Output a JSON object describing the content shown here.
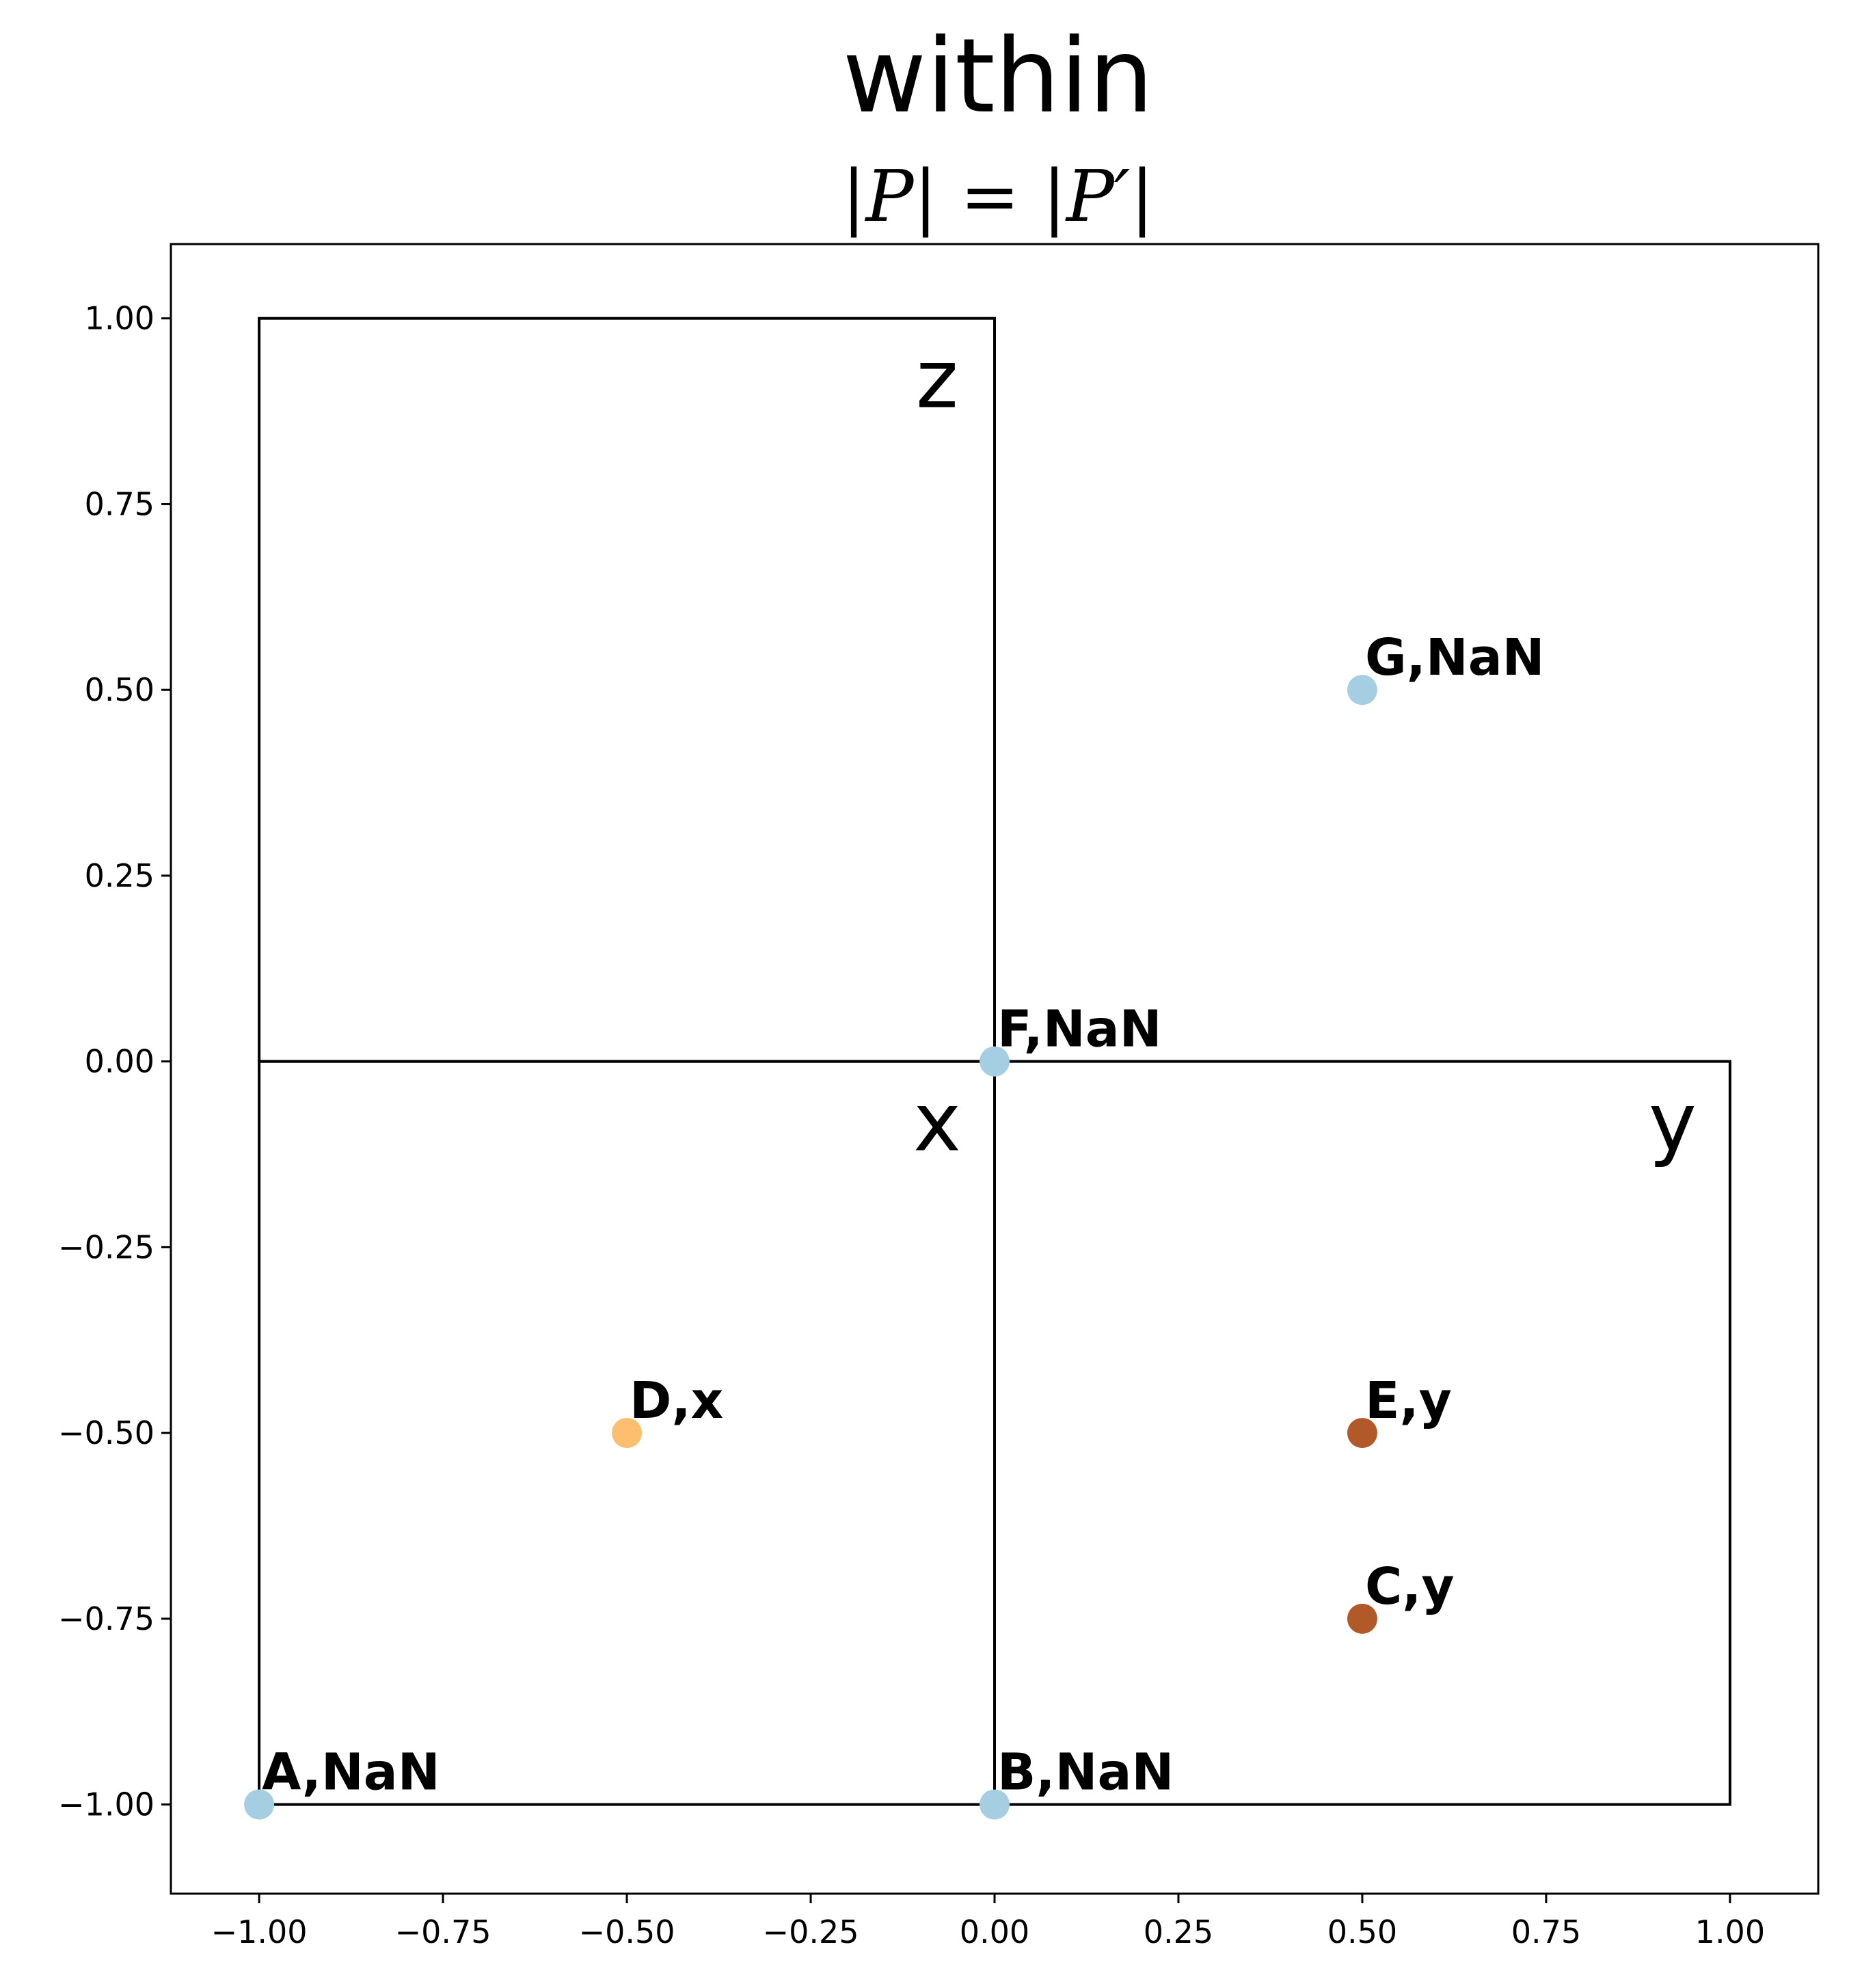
{
  "chart_data": {
    "type": "scatter",
    "title": "within",
    "subtitle": "|P| = |P′|",
    "xlabel": "",
    "ylabel": "",
    "xlim": [
      -1.12,
      1.12
    ],
    "ylim": [
      -1.12,
      1.1
    ],
    "grid": false,
    "xticks": [
      -1.0,
      -0.75,
      -0.5,
      -0.25,
      0.0,
      0.25,
      0.5,
      0.75,
      1.0
    ],
    "yticks": [
      1.0,
      0.75,
      0.5,
      0.25,
      0.0,
      -0.25,
      -0.5,
      -0.75,
      -1.0
    ],
    "xtick_labels": [
      "−1.00",
      "−0.75",
      "−0.50",
      "−0.25",
      "0.00",
      "0.25",
      "0.50",
      "0.75",
      "1.00"
    ],
    "ytick_labels": [
      "1.00",
      "0.75",
      "0.50",
      "0.25",
      "0.00",
      "−0.25",
      "−0.50",
      "−0.75",
      "−1.00"
    ],
    "points": [
      {
        "label": "A,NaN",
        "x": -1.0,
        "y": -1.0,
        "color": "#a6cee3"
      },
      {
        "label": "B,NaN",
        "x": 0.0,
        "y": -1.0,
        "color": "#a6cee3"
      },
      {
        "label": "C,y",
        "x": 0.5,
        "y": -0.75,
        "color": "#b15928"
      },
      {
        "label": "D,x",
        "x": -0.5,
        "y": -0.5,
        "color": "#fdbf6f"
      },
      {
        "label": "E,y",
        "x": 0.5,
        "y": -0.5,
        "color": "#b15928"
      },
      {
        "label": "F,NaN",
        "x": 0.0,
        "y": 0.0,
        "color": "#a6cee3"
      },
      {
        "label": "G,NaN",
        "x": 0.5,
        "y": 0.5,
        "color": "#a6cee3"
      }
    ],
    "regions": [
      {
        "label": "z",
        "x0": -1.0,
        "x1": 0.0,
        "y0": 0.0,
        "y1": 1.0
      },
      {
        "label": "x",
        "x0": -1.0,
        "x1": 0.0,
        "y0": -1.0,
        "y1": 0.0
      },
      {
        "label": "y",
        "x0": 0.0,
        "x1": 1.0,
        "y0": -1.0,
        "y1": 0.0
      }
    ]
  }
}
